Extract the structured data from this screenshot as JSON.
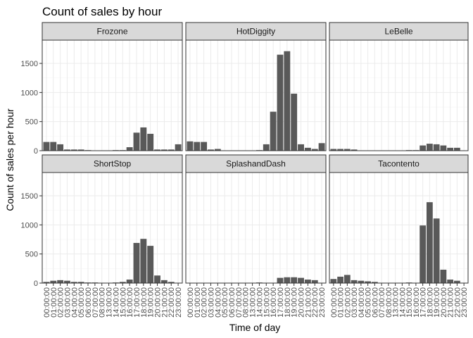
{
  "chart_data": {
    "type": "bar",
    "title": "Count of sales by hour",
    "xlabel": "Time of day",
    "ylabel": "Count of sales per hour",
    "categories": [
      "00:00:00",
      "01:00:00",
      "02:00:00",
      "03:00:00",
      "04:00:00",
      "05:00:00",
      "06:00:00",
      "07:00:00",
      "08:00:00",
      "13:00:00",
      "14:00:00",
      "15:00:00",
      "16:00:00",
      "17:00:00",
      "18:00:00",
      "19:00:00",
      "20:00:00",
      "21:00:00",
      "22:00:00",
      "23:00:00"
    ],
    "yticks": [
      0,
      500,
      1000,
      1500
    ],
    "ytick_labels": [
      "0",
      "500",
      "1000",
      "1500"
    ],
    "ylim": [
      0,
      1900
    ],
    "grid": true,
    "colors": {
      "bar": "#595959",
      "strip_fill": "#d9d9d9",
      "panel_border": "#333333",
      "grid_major": "#ebebeb",
      "grid_minor": "#f5f5f5"
    },
    "facets": [
      {
        "name": "Frozone",
        "values": [
          150,
          150,
          110,
          20,
          20,
          20,
          10,
          0,
          0,
          0,
          10,
          10,
          60,
          310,
          400,
          290,
          20,
          20,
          20,
          110
        ]
      },
      {
        "name": "HotDiggity",
        "values": [
          160,
          150,
          150,
          20,
          30,
          0,
          0,
          0,
          0,
          0,
          10,
          110,
          670,
          1650,
          1710,
          980,
          110,
          50,
          30,
          130
        ]
      },
      {
        "name": "LeBelle",
        "values": [
          30,
          30,
          30,
          20,
          0,
          0,
          0,
          0,
          0,
          0,
          0,
          10,
          10,
          90,
          120,
          110,
          90,
          50,
          50,
          0
        ]
      },
      {
        "name": "ShortStop",
        "values": [
          20,
          40,
          50,
          40,
          20,
          20,
          10,
          10,
          0,
          0,
          10,
          20,
          60,
          690,
          760,
          640,
          130,
          50,
          20,
          0
        ]
      },
      {
        "name": "SplashandDash",
        "values": [
          0,
          0,
          0,
          0,
          0,
          0,
          0,
          0,
          0,
          0,
          10,
          0,
          0,
          90,
          100,
          100,
          90,
          60,
          50,
          0
        ]
      },
      {
        "name": "Tacontento",
        "values": [
          70,
          110,
          140,
          50,
          40,
          30,
          20,
          0,
          0,
          0,
          0,
          10,
          0,
          990,
          1390,
          1110,
          230,
          60,
          40,
          0
        ]
      }
    ]
  }
}
